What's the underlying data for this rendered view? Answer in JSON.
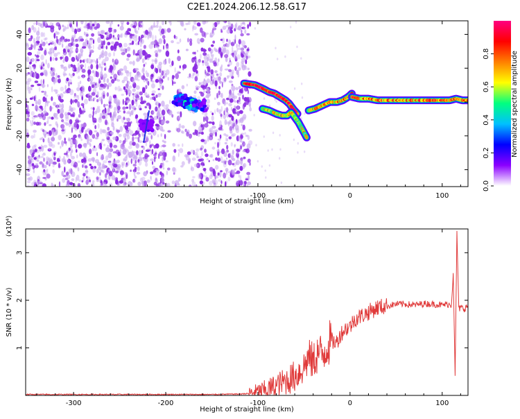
{
  "title": "C2E1.2024.206.12.58.G17",
  "colors": {
    "snr_line": "#e03a3a",
    "spectrogram_noise": "#8a2be2",
    "axis": "#000000",
    "colormap": [
      "#ffffff",
      "#8b00ff",
      "#0000ff",
      "#00c0ff",
      "#00ff80",
      "#ffff00",
      "#ff8000",
      "#ff0000",
      "#ff0080"
    ]
  },
  "chart_data": [
    {
      "type": "heatmap",
      "title": "C2E1.2024.206.12.58.G17",
      "xlabel": "Height of straight line (km)",
      "ylabel": "Frequency (Hz)",
      "xlim": [
        -352,
        128
      ],
      "ylim": [
        -50,
        48
      ],
      "x_ticks": [
        -300,
        -200,
        -100,
        0,
        100
      ],
      "y_ticks": [
        -40,
        -20,
        0,
        20,
        40
      ],
      "colorbar": {
        "label": "Normalized spectral amplitude",
        "range": [
          0.0,
          1.0
        ],
        "ticks": [
          "0.0",
          "0.2",
          "0.4",
          "0.6",
          "0.8"
        ]
      },
      "noise_region": {
        "x": [
          -352,
          -108
        ],
        "y": [
          -50,
          48
        ],
        "sparse_band": [
          -200,
          -170
        ]
      },
      "tracks": [
        {
          "x": [
            -115,
            -103,
            -95,
            -88,
            -82,
            -76,
            -70,
            -66,
            -62,
            -57
          ],
          "y": [
            11,
            10,
            8,
            6,
            5,
            3,
            1,
            -1,
            -4,
            -7
          ],
          "amp": 0.9
        },
        {
          "x": [
            -95,
            -88,
            -80,
            -74,
            -68,
            -64,
            -60,
            -56,
            -53,
            -50,
            -47
          ],
          "y": [
            -4,
            -5,
            -7,
            -8,
            -8,
            -6,
            -9,
            -12,
            -15,
            -18,
            -21
          ],
          "amp": 0.6
        },
        {
          "x": [
            -45,
            -38,
            -30,
            -22,
            -14,
            -8,
            -2,
            2
          ],
          "y": [
            -5,
            -4,
            -2,
            0,
            0,
            1,
            3,
            5
          ],
          "amp": 0.7
        },
        {
          "x": [
            2,
            10,
            20,
            30,
            40,
            50,
            60,
            70,
            80,
            90,
            100,
            108,
            115,
            122,
            128
          ],
          "y": [
            3,
            2,
            2,
            1,
            1,
            1,
            1,
            1,
            1,
            1,
            1,
            1,
            2,
            1,
            1
          ],
          "amp": 0.75
        }
      ],
      "blobs": [
        {
          "x": -185,
          "y": 1,
          "amp": 0.4
        },
        {
          "x": -173,
          "y": -1,
          "amp": 0.5
        },
        {
          "x": -163,
          "y": -2,
          "amp": 0.35
        },
        {
          "x": -221,
          "y": -14,
          "amp": 0.2
        }
      ]
    },
    {
      "type": "line",
      "xlabel": "Height of straight line (km)",
      "ylabel": "SNR (10 * v/v)",
      "y_multiplier": "(x10⁴)",
      "xlim": [
        -352,
        128
      ],
      "ylim": [
        0,
        3.5
      ],
      "x_ticks": [
        -300,
        -200,
        -100,
        0,
        100
      ],
      "y_ticks": [
        1,
        2,
        3
      ],
      "series": [
        {
          "x": [
            -352,
            -300,
            -250,
            -200,
            -150,
            -120,
            -110,
            -100,
            -90,
            -80,
            -70,
            -60,
            -50,
            -45,
            -40,
            -35,
            -30,
            -25,
            -20,
            -15,
            -10,
            -5,
            0,
            5,
            10,
            20,
            30,
            40,
            50,
            60,
            70,
            80,
            90,
            100,
            105,
            110,
            112,
            114,
            116,
            118,
            120,
            124,
            128
          ],
          "y": [
            0.02,
            0.02,
            0.02,
            0.02,
            0.02,
            0.03,
            0.04,
            0.07,
            0.12,
            0.2,
            0.3,
            0.4,
            0.6,
            0.8,
            0.7,
            0.9,
            0.85,
            1.05,
            1.15,
            1.1,
            1.3,
            1.4,
            1.45,
            1.6,
            1.65,
            1.75,
            1.85,
            1.88,
            1.92,
            1.92,
            1.9,
            1.93,
            1.92,
            1.9,
            1.92,
            1.9,
            2.6,
            0.4,
            3.45,
            1.8,
            1.85,
            1.82,
            1.88
          ]
        }
      ]
    }
  ]
}
